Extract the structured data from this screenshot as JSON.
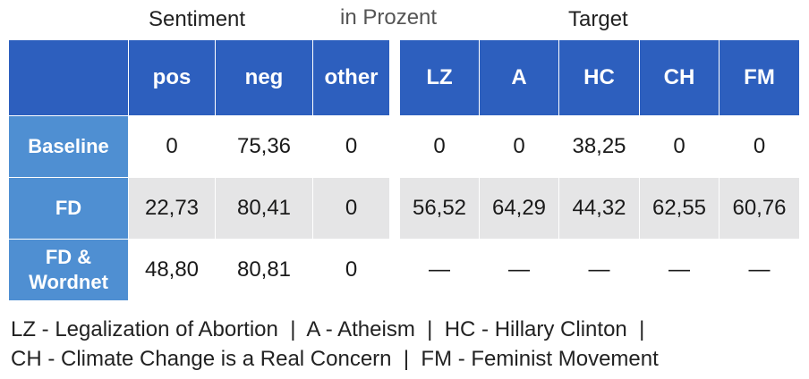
{
  "headers": {
    "sentiment": "Sentiment",
    "unit": "in Prozent",
    "target": "Target"
  },
  "sentiment_columns": [
    "pos",
    "neg",
    "other"
  ],
  "target_columns": [
    "LZ",
    "A",
    "HC",
    "CH",
    "FM"
  ],
  "rows": [
    {
      "label": "Baseline",
      "sentiment": [
        "0",
        "75,36",
        "0"
      ],
      "target": [
        "0",
        "0",
        "38,25",
        "0",
        "0"
      ]
    },
    {
      "label": "FD",
      "sentiment": [
        "22,73",
        "80,41",
        "0"
      ],
      "target": [
        "56,52",
        "64,29",
        "44,32",
        "62,55",
        "60,76"
      ]
    },
    {
      "label": "FD & Wordnet",
      "sentiment": [
        "48,80",
        "80,81",
        "0"
      ],
      "target": [
        "—",
        "—",
        "—",
        "—",
        "—"
      ]
    }
  ],
  "legend": {
    "line1": "LZ - Legalization of Abortion  |  A - Atheism  |  HC - Hillary Clinton  |",
    "line2": "CH - Climate Change is a Real Concern  |  FM - Feminist Movement"
  }
}
